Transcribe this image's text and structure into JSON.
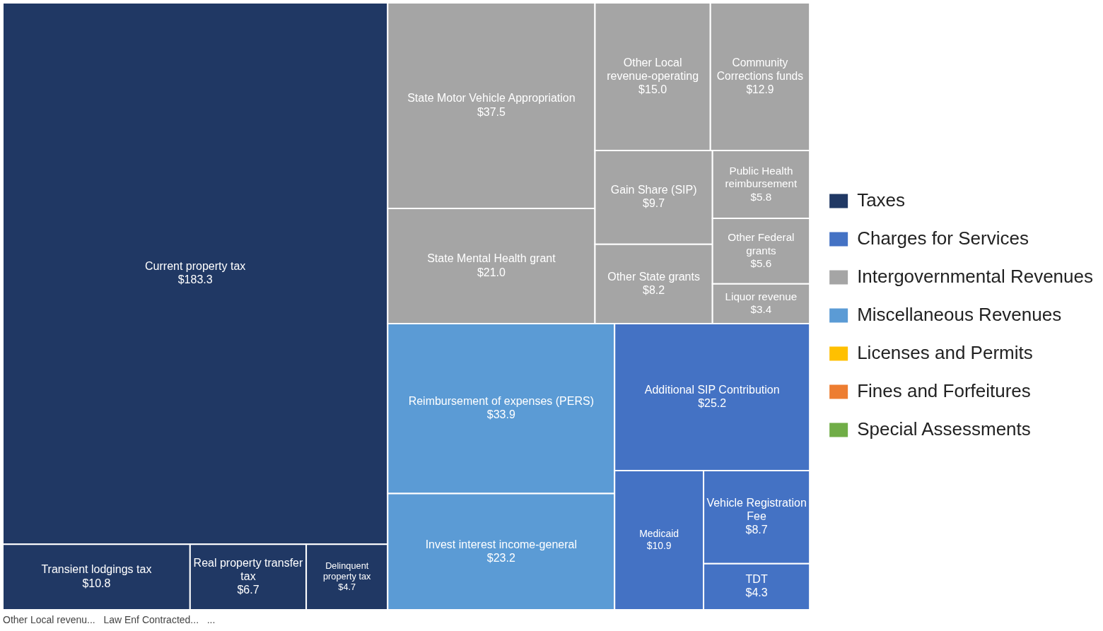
{
  "chart_data": {
    "type": "other",
    "categories": [
      "Current property tax",
      "Transient lodgings tax",
      "Real property transfer tax",
      "Delinquent property tax",
      "State Motor Vehicle Appropriation",
      "State Mental Health grant",
      "Other Local revenue-operating",
      "Community Corrections funds",
      "Gain Share (SIP)",
      "Other State grants",
      "Public Health reimbursement",
      "Other Federal grants",
      "Liquor revenue",
      "Additional SIP Contribution",
      "Medicaid",
      "Vehicle Registration Fee",
      "TDT",
      "Reimbursement of expenses (PERS)",
      "Invest interest income-general"
    ],
    "series": [
      {
        "name": "Taxes",
        "color": "#203864",
        "values": [
          183.3,
          10.8,
          6.7,
          4.7,
          null,
          null,
          null,
          null,
          null,
          null,
          null,
          null,
          null,
          null,
          null,
          null,
          null,
          null,
          null
        ],
        "value_labels": [
          "$183.3",
          "$10.8",
          "$6.7",
          "$4.7",
          null,
          null,
          null,
          null,
          null,
          null,
          null,
          null,
          null,
          null,
          null,
          null,
          null,
          null,
          null
        ]
      },
      {
        "name": "Charges for Services",
        "color": "#4472c4",
        "values": [
          null,
          null,
          null,
          null,
          null,
          null,
          null,
          null,
          null,
          null,
          null,
          null,
          null,
          25.2,
          10.9,
          8.7,
          4.3,
          null,
          null
        ],
        "value_labels": [
          null,
          null,
          null,
          null,
          null,
          null,
          null,
          null,
          null,
          null,
          null,
          null,
          null,
          "$25.2",
          "$10.9",
          "$8.7",
          "$4.3",
          null,
          null
        ]
      },
      {
        "name": "Intergovernmental Revenues",
        "color": "#a5a5a5",
        "values": [
          null,
          null,
          null,
          null,
          37.5,
          21.0,
          15.0,
          12.9,
          9.7,
          8.2,
          5.8,
          5.6,
          3.4,
          null,
          null,
          null,
          null,
          null,
          null
        ],
        "value_labels": [
          null,
          null,
          null,
          null,
          "$37.5",
          "$21.0",
          "$15.0",
          "$12.9",
          "$9.7",
          "$8.2",
          "$5.8",
          "$5.6",
          "$3.4",
          null,
          null,
          null,
          null,
          null,
          null
        ]
      },
      {
        "name": "Miscellaneous Revenues",
        "color": "#5b9bd5",
        "values": [
          null,
          null,
          null,
          null,
          null,
          null,
          null,
          null,
          null,
          null,
          null,
          null,
          null,
          null,
          null,
          null,
          null,
          33.9,
          23.2
        ],
        "value_labels": [
          null,
          null,
          null,
          null,
          null,
          null,
          null,
          null,
          null,
          null,
          null,
          null,
          null,
          null,
          null,
          null,
          null,
          "$33.9",
          "$23.2"
        ]
      },
      {
        "name": "Licenses and Permits",
        "color": "#ffc000",
        "values": [
          null,
          null,
          null,
          null,
          null,
          null,
          null,
          null,
          null,
          null,
          null,
          null,
          null,
          null,
          null,
          null,
          null,
          null,
          null
        ]
      },
      {
        "name": "Fines and Forfeitures",
        "color": "#ed7d31",
        "values": [
          null,
          null,
          null,
          null,
          null,
          null,
          null,
          null,
          null,
          null,
          null,
          null,
          null,
          null,
          null,
          null,
          null,
          null,
          null
        ]
      },
      {
        "name": "Special Assessments",
        "color": "#70ad47",
        "values": [
          null,
          null,
          null,
          null,
          null,
          null,
          null,
          null,
          null,
          null,
          null,
          null,
          null,
          null,
          null,
          null,
          null,
          null,
          null
        ]
      }
    ],
    "annotations": [
      "Other Local revenu...",
      "Law Enf Contracted...",
      "..."
    ],
    "legend": "right"
  }
}
